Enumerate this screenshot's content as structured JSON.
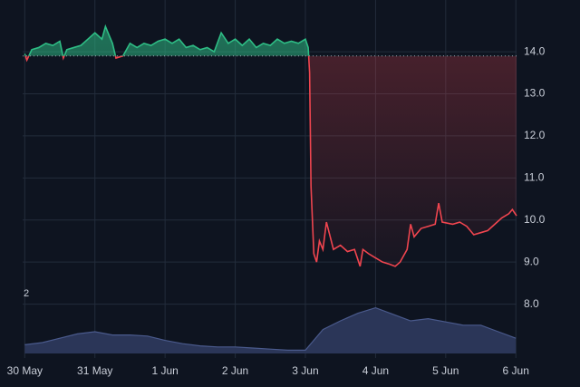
{
  "chart_data": {
    "type": "baseline",
    "baseline": 13.9,
    "color_up": "#2ebd85",
    "color_down": "#f0454f",
    "grid": true,
    "xlim": [
      -0.03,
      7.01
    ],
    "ylim": [
      6.72,
      15.23
    ],
    "xticks": [
      {
        "value": 0,
        "label": "30 May"
      },
      {
        "value": 1,
        "label": "31 May"
      },
      {
        "value": 2,
        "label": "1 Jun"
      },
      {
        "value": 3,
        "label": "2 Jun"
      },
      {
        "value": 4,
        "label": "3 Jun"
      },
      {
        "value": 5,
        "label": "4 Jun"
      },
      {
        "value": 6,
        "label": "5 Jun"
      },
      {
        "value": 7,
        "label": "6 Jun"
      }
    ],
    "yticks": [
      {
        "value": 8,
        "label": "8.0"
      },
      {
        "value": 9,
        "label": "9.0"
      },
      {
        "value": 10,
        "label": "10.0"
      },
      {
        "value": 11,
        "label": "11.0"
      },
      {
        "value": 12,
        "label": "12.0"
      },
      {
        "value": 13,
        "label": "13.0"
      },
      {
        "value": 14,
        "label": "14.0"
      }
    ],
    "x": [
      0,
      0.03,
      0.1,
      0.2,
      0.3,
      0.4,
      0.5,
      0.55,
      0.6,
      0.7,
      0.8,
      0.9,
      1.0,
      1.1,
      1.15,
      1.2,
      1.25,
      1.3,
      1.4,
      1.5,
      1.6,
      1.7,
      1.8,
      1.9,
      2.0,
      2.1,
      2.2,
      2.3,
      2.4,
      2.5,
      2.6,
      2.7,
      2.8,
      2.9,
      3.0,
      3.1,
      3.2,
      3.3,
      3.4,
      3.5,
      3.6,
      3.7,
      3.8,
      3.9,
      4.0,
      4.04,
      4.06,
      4.08,
      4.12,
      4.16,
      4.2,
      4.25,
      4.3,
      4.4,
      4.5,
      4.6,
      4.7,
      4.78,
      4.82,
      4.9,
      5.0,
      5.1,
      5.2,
      5.28,
      5.35,
      5.45,
      5.5,
      5.55,
      5.65,
      5.75,
      5.85,
      5.9,
      5.95,
      6.1,
      6.2,
      6.3,
      6.4,
      6.5,
      6.6,
      6.7,
      6.8,
      6.9,
      6.95,
      7.01
    ],
    "values": [
      13.95,
      13.8,
      14.05,
      14.1,
      14.2,
      14.15,
      14.25,
      13.85,
      14.05,
      14.1,
      14.15,
      14.3,
      14.45,
      14.3,
      14.6,
      14.4,
      14.2,
      13.85,
      13.9,
      14.2,
      14.1,
      14.2,
      14.15,
      14.25,
      14.3,
      14.2,
      14.3,
      14.1,
      14.15,
      14.05,
      14.1,
      14.0,
      14.45,
      14.2,
      14.3,
      14.15,
      14.3,
      14.1,
      14.2,
      14.15,
      14.3,
      14.2,
      14.25,
      14.2,
      14.3,
      14.1,
      13.5,
      10.8,
      9.2,
      9.0,
      9.5,
      9.3,
      9.95,
      9.3,
      9.4,
      9.25,
      9.3,
      8.9,
      9.3,
      9.2,
      9.1,
      9.0,
      8.95,
      8.9,
      9.0,
      9.3,
      9.9,
      9.6,
      9.8,
      9.85,
      9.9,
      10.4,
      9.95,
      9.9,
      9.95,
      9.85,
      9.65,
      9.7,
      9.75,
      9.9,
      10.05,
      10.15,
      10.25,
      10.1
    ],
    "volume": {
      "label": "2",
      "color": "#2b3658",
      "line_color": "#4a5a8c",
      "ylim": [
        0,
        50
      ],
      "x": [
        0,
        0.25,
        0.5,
        0.75,
        1,
        1.25,
        1.5,
        1.75,
        2,
        2.25,
        2.5,
        2.75,
        3,
        3.25,
        3.5,
        3.75,
        4,
        4.25,
        4.5,
        4.75,
        5,
        5.25,
        5.5,
        5.75,
        6,
        6.25,
        6.5,
        6.75,
        7
      ],
      "values": [
        8,
        10,
        14,
        18,
        20,
        17,
        17,
        16,
        12,
        9,
        7,
        6,
        6,
        5,
        4,
        3,
        3,
        22,
        30,
        37,
        42,
        36,
        30,
        32,
        29,
        26,
        26,
        20,
        14
      ]
    }
  }
}
